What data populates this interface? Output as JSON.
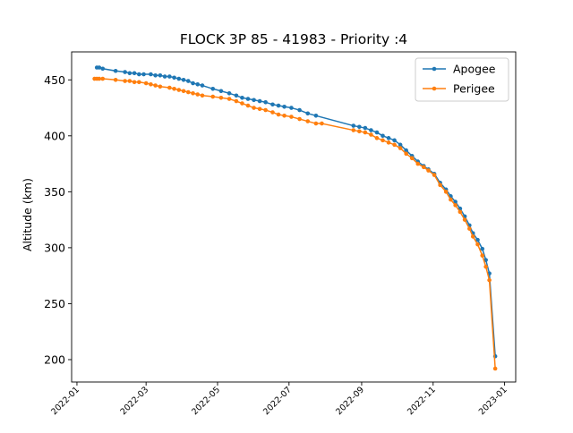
{
  "chart_data": {
    "type": "line",
    "title": "FLOCK 3P 85 - 41983 - Priority :4",
    "xlabel": "",
    "ylabel": "Altitude (km)",
    "xlim": [
      "2022-01-01",
      "2023-01-01"
    ],
    "ylim": [
      180,
      475
    ],
    "x_ticks": [
      "2022-01",
      "2022-03",
      "2022-05",
      "2022-07",
      "2022-09",
      "2022-11",
      "2023-01"
    ],
    "y_ticks": [
      200,
      250,
      300,
      350,
      400,
      450
    ],
    "grid": false,
    "legend": "top-right",
    "series": [
      {
        "name": "Apogee",
        "color": "#1f77b4",
        "points": [
          [
            "2022-01-18",
            461
          ],
          [
            "2022-01-20",
            461
          ],
          [
            "2022-01-23",
            460
          ],
          [
            "2022-02-03",
            458
          ],
          [
            "2022-02-11",
            457
          ],
          [
            "2022-02-15",
            456
          ],
          [
            "2022-02-19",
            456
          ],
          [
            "2022-02-23",
            455
          ],
          [
            "2022-02-27",
            455
          ],
          [
            "2022-03-05",
            455
          ],
          [
            "2022-03-09",
            454
          ],
          [
            "2022-03-13",
            454
          ],
          [
            "2022-03-17",
            453
          ],
          [
            "2022-03-21",
            453
          ],
          [
            "2022-03-25",
            452
          ],
          [
            "2022-03-29",
            451
          ],
          [
            "2022-04-02",
            450
          ],
          [
            "2022-04-06",
            449
          ],
          [
            "2022-04-10",
            447
          ],
          [
            "2022-04-14",
            446
          ],
          [
            "2022-04-18",
            445
          ],
          [
            "2022-04-27",
            442
          ],
          [
            "2022-05-04",
            440
          ],
          [
            "2022-05-11",
            438
          ],
          [
            "2022-05-17",
            436
          ],
          [
            "2022-05-22",
            434
          ],
          [
            "2022-05-27",
            433
          ],
          [
            "2022-06-01",
            432
          ],
          [
            "2022-06-06",
            431
          ],
          [
            "2022-06-11",
            430
          ],
          [
            "2022-06-17",
            428
          ],
          [
            "2022-06-22",
            427
          ],
          [
            "2022-06-27",
            426
          ],
          [
            "2022-07-03",
            425
          ],
          [
            "2022-07-10",
            423
          ],
          [
            "2022-07-17",
            420
          ],
          [
            "2022-07-24",
            418
          ],
          [
            "2022-08-25",
            409
          ],
          [
            "2022-08-30",
            408
          ],
          [
            "2022-09-04",
            407
          ],
          [
            "2022-09-09",
            405
          ],
          [
            "2022-09-14",
            403
          ],
          [
            "2022-09-19",
            400
          ],
          [
            "2022-09-24",
            398
          ],
          [
            "2022-09-29",
            396
          ],
          [
            "2022-10-04",
            392
          ],
          [
            "2022-10-09",
            387
          ],
          [
            "2022-10-14",
            382
          ],
          [
            "2022-10-19",
            377
          ],
          [
            "2022-10-24",
            373
          ],
          [
            "2022-10-28",
            370
          ],
          [
            "2022-11-02",
            366
          ],
          [
            "2022-11-07",
            358
          ],
          [
            "2022-11-12",
            352
          ],
          [
            "2022-11-16",
            346
          ],
          [
            "2022-11-20",
            341
          ],
          [
            "2022-11-24",
            335
          ],
          [
            "2022-11-28",
            328
          ],
          [
            "2022-12-02",
            320
          ],
          [
            "2022-12-05",
            313
          ],
          [
            "2022-12-09",
            307
          ],
          [
            "2022-12-13",
            299
          ],
          [
            "2022-12-16",
            289
          ],
          [
            "2022-12-19",
            277
          ],
          [
            "2022-12-24",
            203
          ]
        ]
      },
      {
        "name": "Perigee",
        "color": "#ff7f0e",
        "points": [
          [
            "2022-01-16",
            451
          ],
          [
            "2022-01-18",
            451
          ],
          [
            "2022-01-20",
            451
          ],
          [
            "2022-01-23",
            451
          ],
          [
            "2022-02-03",
            450
          ],
          [
            "2022-02-11",
            449
          ],
          [
            "2022-02-15",
            449
          ],
          [
            "2022-02-19",
            448
          ],
          [
            "2022-02-23",
            448
          ],
          [
            "2022-03-01",
            447
          ],
          [
            "2022-03-05",
            446
          ],
          [
            "2022-03-09",
            445
          ],
          [
            "2022-03-13",
            444
          ],
          [
            "2022-03-21",
            443
          ],
          [
            "2022-03-25",
            442
          ],
          [
            "2022-03-29",
            441
          ],
          [
            "2022-04-02",
            440
          ],
          [
            "2022-04-06",
            439
          ],
          [
            "2022-04-10",
            438
          ],
          [
            "2022-04-14",
            437
          ],
          [
            "2022-04-18",
            436
          ],
          [
            "2022-04-27",
            435
          ],
          [
            "2022-05-04",
            434
          ],
          [
            "2022-05-11",
            433
          ],
          [
            "2022-05-17",
            431
          ],
          [
            "2022-05-22",
            429
          ],
          [
            "2022-05-27",
            427
          ],
          [
            "2022-06-01",
            425
          ],
          [
            "2022-06-06",
            424
          ],
          [
            "2022-06-11",
            423
          ],
          [
            "2022-06-17",
            421
          ],
          [
            "2022-06-22",
            419
          ],
          [
            "2022-06-27",
            418
          ],
          [
            "2022-07-03",
            417
          ],
          [
            "2022-07-10",
            415
          ],
          [
            "2022-07-17",
            413
          ],
          [
            "2022-07-24",
            411
          ],
          [
            "2022-07-29",
            411
          ],
          [
            "2022-08-25",
            405
          ],
          [
            "2022-08-30",
            404
          ],
          [
            "2022-09-04",
            403
          ],
          [
            "2022-09-09",
            401
          ],
          [
            "2022-09-14",
            398
          ],
          [
            "2022-09-19",
            396
          ],
          [
            "2022-09-24",
            394
          ],
          [
            "2022-09-29",
            392
          ],
          [
            "2022-10-04",
            389
          ],
          [
            "2022-10-09",
            384
          ],
          [
            "2022-10-14",
            380
          ],
          [
            "2022-10-19",
            375
          ],
          [
            "2022-10-24",
            372
          ],
          [
            "2022-10-28",
            369
          ],
          [
            "2022-11-02",
            365
          ],
          [
            "2022-11-07",
            356
          ],
          [
            "2022-11-12",
            350
          ],
          [
            "2022-11-16",
            343
          ],
          [
            "2022-11-20",
            338
          ],
          [
            "2022-11-24",
            332
          ],
          [
            "2022-11-28",
            325
          ],
          [
            "2022-12-02",
            317
          ],
          [
            "2022-12-05",
            310
          ],
          [
            "2022-12-09",
            303
          ],
          [
            "2022-12-13",
            293
          ],
          [
            "2022-12-16",
            283
          ],
          [
            "2022-12-19",
            271
          ],
          [
            "2022-12-24",
            192
          ]
        ]
      }
    ]
  }
}
